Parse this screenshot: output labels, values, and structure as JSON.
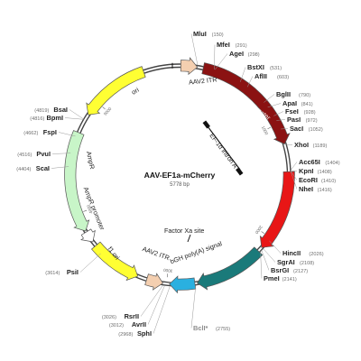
{
  "plasmid": {
    "name": "AAV-EF1a-mCherry",
    "length_label": "5778 bp",
    "length": 5778
  },
  "sites": [
    {
      "name": "MluI",
      "pos_label": "(150)"
    },
    {
      "name": "MfeI",
      "pos_label": "(291)"
    },
    {
      "name": "AgeI",
      "pos_label": "(298)"
    },
    {
      "name": "BstXI",
      "pos_label": "(531)"
    },
    {
      "name": "AflII",
      "pos_label": "(603)"
    },
    {
      "name": "BglII",
      "pos_label": "(790)"
    },
    {
      "name": "ApaI",
      "pos_label": "(841)"
    },
    {
      "name": "FseI",
      "pos_label": "(928)"
    },
    {
      "name": "PasI",
      "pos_label": "(972)"
    },
    {
      "name": "SacI",
      "pos_label": "(1052)"
    },
    {
      "name": "XhoI",
      "pos_label": "(1189)"
    },
    {
      "name": "Acc65I",
      "pos_label": "(1404)"
    },
    {
      "name": "KpnI",
      "pos_label": "(1408)"
    },
    {
      "name": "EcoRI",
      "pos_label": "(1410)"
    },
    {
      "name": "NheI",
      "pos_label": "(1416)"
    },
    {
      "name": "HincII",
      "pos_label": "(2026)"
    },
    {
      "name": "SgrAI",
      "pos_label": "(2108)"
    },
    {
      "name": "BsrGI",
      "pos_label": "(2127)"
    },
    {
      "name": "PmeI",
      "pos_label": "(2141)"
    },
    {
      "name": "BclI*",
      "pos_label": "(2755)"
    },
    {
      "name": "SphI",
      "pos_label": "(2968)"
    },
    {
      "name": "AvrII",
      "pos_label": "(3012)"
    },
    {
      "name": "RsrII",
      "pos_label": "(3026)"
    },
    {
      "name": "PsiI",
      "pos_label": "(3614)"
    },
    {
      "name": "ScaI",
      "pos_label": "(4404)"
    },
    {
      "name": "PvuI",
      "pos_label": "(4516)"
    },
    {
      "name": "FspI",
      "pos_label": "(4662)"
    },
    {
      "name": "BpmI",
      "pos_label": "(4816)"
    },
    {
      "name": "BsaI",
      "pos_label": "(4819)"
    }
  ],
  "features": [
    {
      "label": "AAV2 ITR"
    },
    {
      "label": "EF-1α promoter"
    },
    {
      "label": "EF-1α intron A"
    },
    {
      "label": "mCherry"
    },
    {
      "label": "Factor Xa site"
    },
    {
      "label": "WPRE"
    },
    {
      "label": "bGH poly(A) signal"
    },
    {
      "label": "AAV2 ITR"
    },
    {
      "label": "f1 ori"
    },
    {
      "label": "AmpR promoter"
    },
    {
      "label": "AmpR"
    },
    {
      "label": "ori"
    }
  ],
  "ticks": [
    "1000",
    "2000",
    "3000",
    "4000",
    "5000"
  ],
  "colors": {
    "itr": "#f4cfb0",
    "promoter": "#8b1212",
    "mcherry": "#e81616",
    "wpre": "#1a7a7a",
    "bgh": "#2ab0e0",
    "f1ori": "#ffff33",
    "ampr": "#c8f5c8",
    "ori": "#ffff33",
    "backbone": "#444444"
  }
}
